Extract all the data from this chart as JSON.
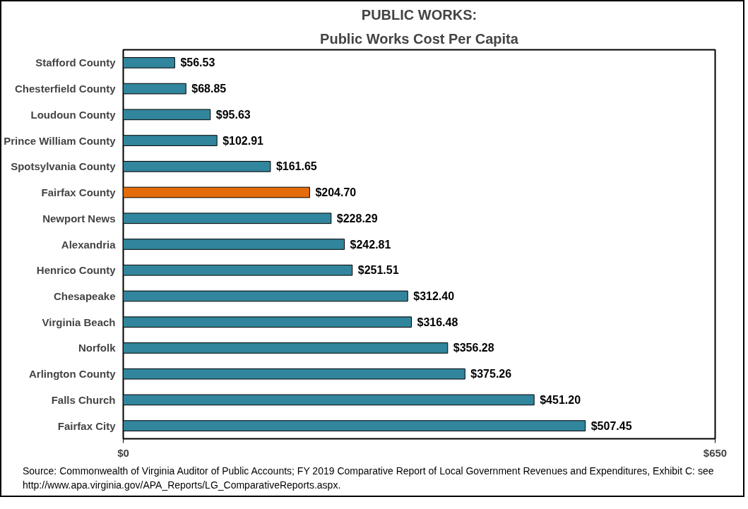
{
  "chart_data": {
    "type": "bar",
    "orientation": "horizontal",
    "title": "PUBLIC WORKS:",
    "subtitle": "Public Works Cost Per Capita",
    "categories": [
      "Stafford County",
      "Chesterfield County",
      "Loudoun County",
      "Prince William County",
      "Spotsylvania County",
      "Fairfax County",
      "Newport News",
      "Alexandria",
      "Henrico County",
      "Chesapeake",
      "Virginia Beach",
      "Norfolk",
      "Arlington County",
      "Falls Church",
      "Fairfax City"
    ],
    "values": [
      56.53,
      68.85,
      95.63,
      102.91,
      161.65,
      204.7,
      228.29,
      242.81,
      251.51,
      312.4,
      316.48,
      356.28,
      375.26,
      451.2,
      507.45
    ],
    "value_labels": [
      "$56.53",
      "$68.85",
      "$95.63",
      "$102.91",
      "$161.65",
      "$204.70",
      "$228.29",
      "$242.81",
      "$251.51",
      "$312.40",
      "$316.48",
      "$356.28",
      "$375.26",
      "$451.20",
      "$507.45"
    ],
    "colors": [
      "#31859c",
      "#31859c",
      "#31859c",
      "#31859c",
      "#31859c",
      "#e46c0a",
      "#31859c",
      "#31859c",
      "#31859c",
      "#31859c",
      "#31859c",
      "#31859c",
      "#31859c",
      "#31859c",
      "#31859c"
    ],
    "xlim": [
      0,
      650
    ],
    "xticks": [
      {
        "value": 0,
        "label": "$0"
      },
      {
        "value": 650,
        "label": "$650"
      }
    ],
    "grid": false,
    "annotations": [
      "Source: Commonwealth of Virginia Auditor of Public Accounts; FY 2019 Comparative Report of Local Government Revenues and Expenditures, Exhibit C: see http://www.apa.virginia.gov/APA_Reports/LG_ComparativeReports.aspx."
    ]
  }
}
